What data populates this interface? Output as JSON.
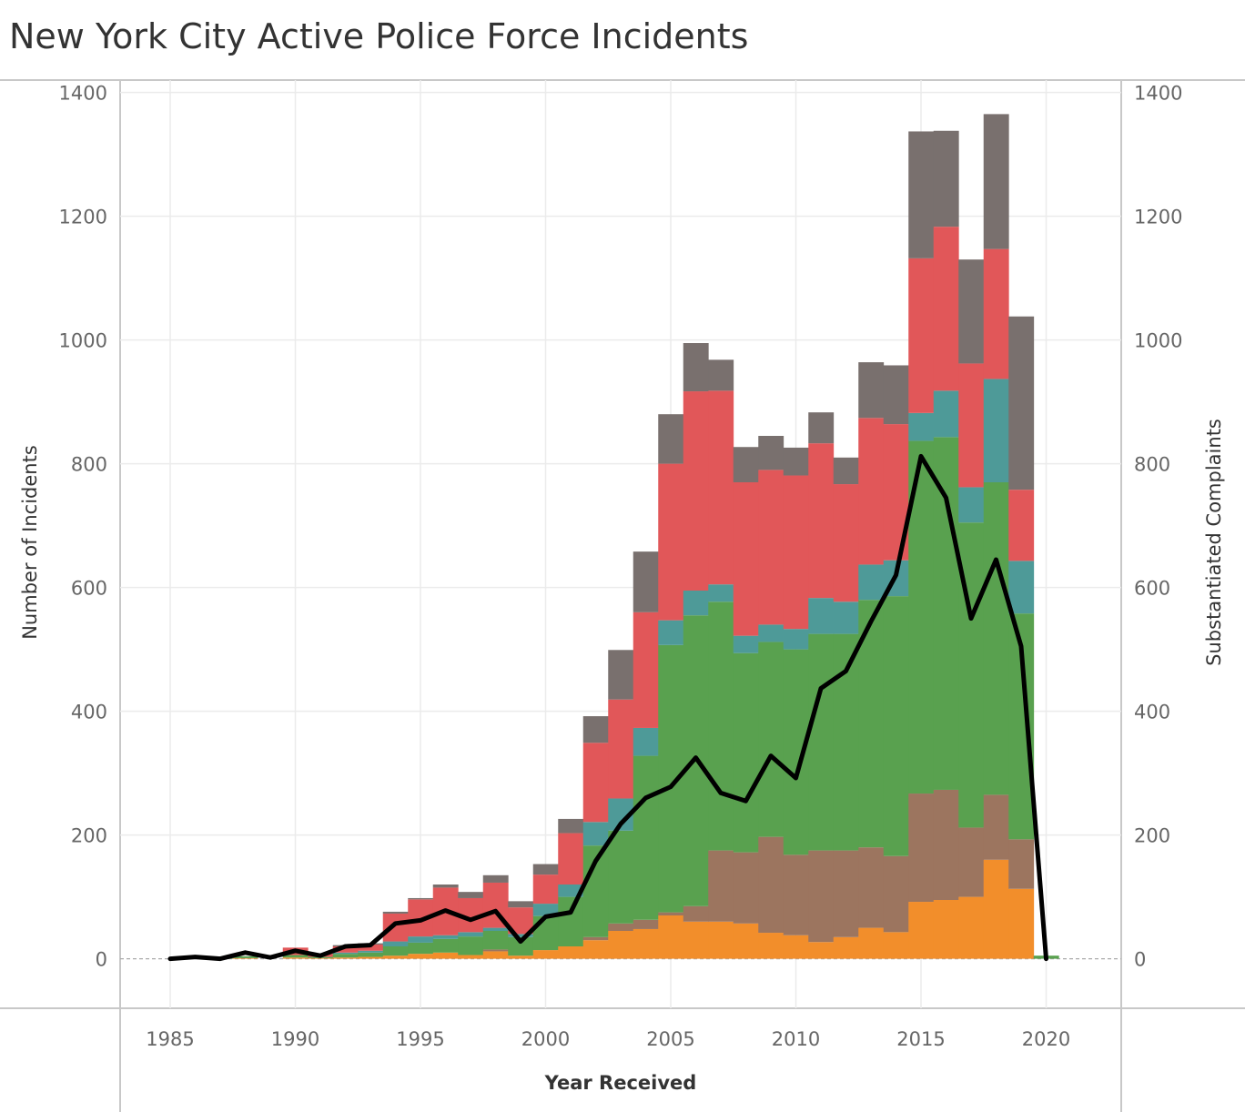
{
  "chart_data": {
    "type": "bar",
    "title": "New York City Active Police Force Incidents",
    "xlabel": "Year Received",
    "ylabel": "Number of Incidents",
    "y2label": "Substantiated Complaints",
    "xlim": [
      1983,
      2023
    ],
    "ylim": [
      -80,
      1420
    ],
    "y2lim": [
      -80,
      1420
    ],
    "x_ticks": [
      1985,
      1990,
      1995,
      2000,
      2005,
      2010,
      2015,
      2020
    ],
    "y_ticks": [
      0,
      200,
      400,
      600,
      800,
      1000,
      1200,
      1400
    ],
    "grid": true,
    "legend": "none",
    "x": [
      1985,
      1986,
      1987,
      1988,
      1989,
      1990,
      1991,
      1992,
      1993,
      1994,
      1995,
      1996,
      1997,
      1998,
      1999,
      2000,
      2001,
      2002,
      2003,
      2004,
      2005,
      2006,
      2007,
      2008,
      2009,
      2010,
      2011,
      2012,
      2013,
      2014,
      2015,
      2016,
      2017,
      2018,
      2019,
      2020
    ],
    "series": [
      {
        "color": "#f28e2b",
        "values": [
          0,
          0,
          0,
          1,
          0,
          2,
          1,
          2,
          3,
          5,
          8,
          10,
          6,
          12,
          5,
          14,
          20,
          30,
          45,
          48,
          70,
          60,
          60,
          57,
          42,
          38,
          27,
          35,
          50,
          43,
          92,
          95,
          100,
          160,
          113,
          0
        ]
      },
      {
        "color": "#9c755f",
        "values": [
          0,
          0,
          0,
          0,
          0,
          0,
          0,
          0,
          0,
          0,
          0,
          0,
          0,
          3,
          0,
          0,
          0,
          5,
          12,
          15,
          5,
          25,
          115,
          115,
          155,
          130,
          148,
          140,
          130,
          123,
          175,
          178,
          112,
          105,
          80,
          0
        ]
      },
      {
        "color": "#59a14f",
        "values": [
          0,
          1,
          1,
          3,
          0,
          4,
          2,
          6,
          7,
          15,
          18,
          22,
          30,
          30,
          30,
          55,
          80,
          148,
          150,
          265,
          432,
          470,
          402,
          322,
          315,
          332,
          350,
          350,
          400,
          420,
          570,
          570,
          493,
          505,
          365,
          5
        ]
      },
      {
        "color": "#4e9a98",
        "values": [
          0,
          0,
          0,
          0,
          0,
          0,
          0,
          2,
          3,
          8,
          10,
          6,
          7,
          5,
          5,
          20,
          20,
          38,
          52,
          45,
          40,
          40,
          28,
          28,
          28,
          33,
          58,
          52,
          57,
          58,
          45,
          75,
          57,
          167,
          85,
          0
        ]
      },
      {
        "color": "#e15759",
        "values": [
          0,
          0,
          0,
          0,
          0,
          12,
          5,
          10,
          10,
          45,
          60,
          77,
          55,
          73,
          43,
          47,
          83,
          128,
          160,
          187,
          253,
          322,
          313,
          248,
          250,
          248,
          250,
          190,
          237,
          220,
          250,
          265,
          200,
          210,
          115,
          0
        ]
      },
      {
        "color": "#79706e",
        "values": [
          0,
          0,
          0,
          0,
          0,
          0,
          0,
          2,
          2,
          3,
          2,
          5,
          10,
          12,
          10,
          17,
          23,
          43,
          80,
          98,
          80,
          78,
          50,
          57,
          55,
          45,
          50,
          43,
          90,
          95,
          205,
          155,
          168,
          218,
          280,
          0
        ]
      }
    ],
    "line_series": {
      "color": "#000000",
      "axis": "right",
      "values": [
        0,
        3,
        0,
        10,
        2,
        13,
        5,
        20,
        22,
        57,
        62,
        78,
        63,
        77,
        28,
        68,
        75,
        158,
        218,
        260,
        278,
        325,
        268,
        255,
        328,
        292,
        437,
        465,
        545,
        620,
        812,
        745,
        550,
        645,
        505,
        0
      ]
    }
  }
}
